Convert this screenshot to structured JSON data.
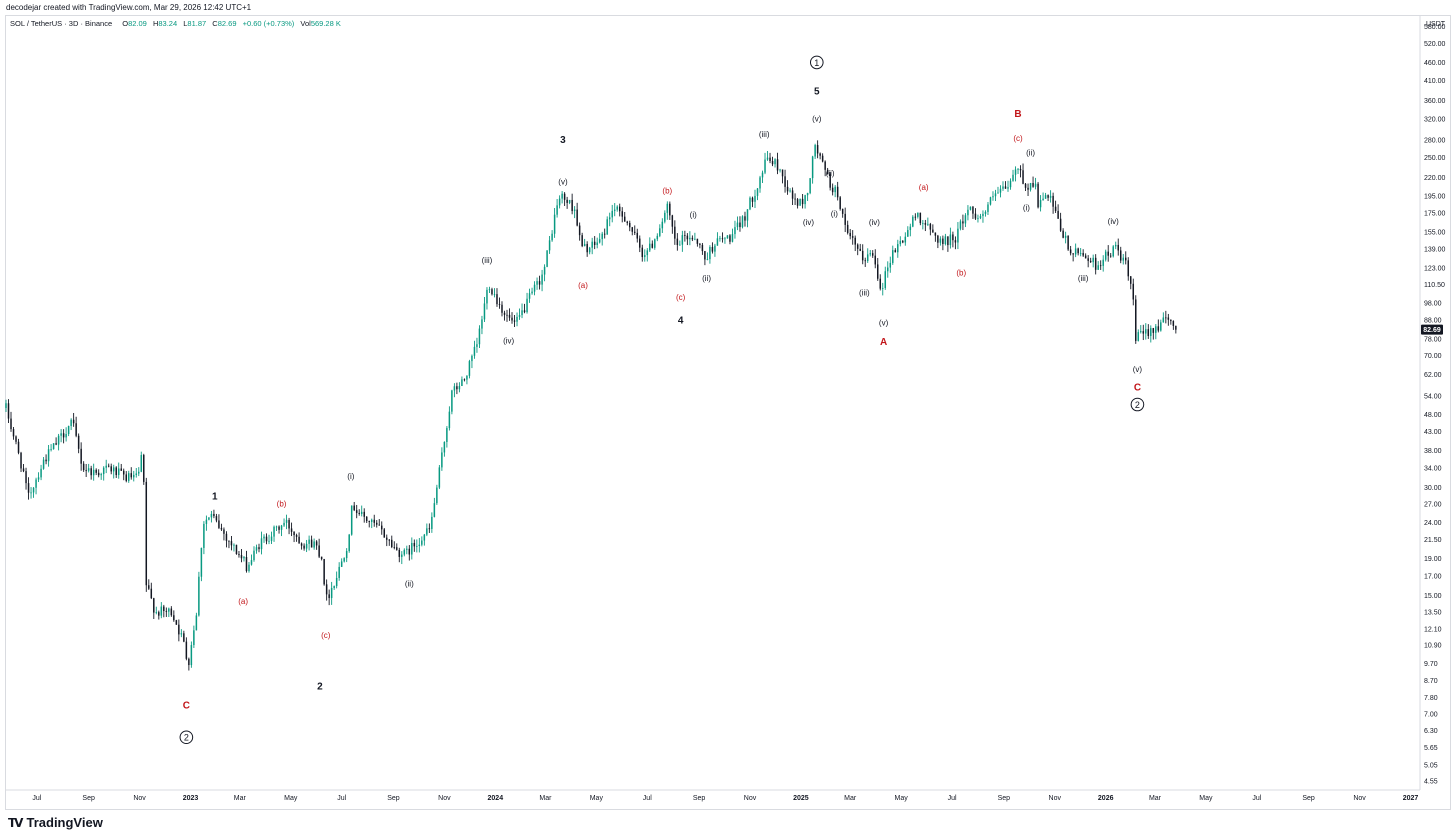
{
  "caption": "decodejar created with TradingView.com, Mar 29, 2026 12:42 UTC+1",
  "header": {
    "symbol": "SOL / TetherUS · 3D · Binance",
    "o_label": "O",
    "o": "82.09",
    "h_label": "H",
    "h": "83.24",
    "l_label": "L",
    "l": "81.87",
    "c_label": "C",
    "c": "82.69",
    "change": "+0.60 (+0.73%)",
    "vol_label": "Vol",
    "vol": "569.28 K"
  },
  "brand": "TradingView",
  "colors": {
    "up": "#089981",
    "down": "#131722",
    "label_red": "#c2161a",
    "last_price_bg": "#131722"
  },
  "chart_data": {
    "type": "candlestick",
    "title": "SOL / TetherUS · 3D · Binance",
    "y_scale": "log",
    "y_unit": "USDT",
    "last_price": "82.69",
    "y_ticks": [
      "580.00",
      "520.00",
      "460.00",
      "410.00",
      "360.00",
      "320.00",
      "280.00",
      "250.00",
      "220.00",
      "195.00",
      "175.00",
      "155.00",
      "139.00",
      "123.00",
      "110.50",
      "98.00",
      "88.00",
      "78.00",
      "70.00",
      "62.00",
      "54.00",
      "48.00",
      "43.00",
      "38.00",
      "34.00",
      "30.00",
      "27.00",
      "24.00",
      "21.50",
      "19.00",
      "17.00",
      "15.00",
      "13.50",
      "12.10",
      "10.90",
      "9.70",
      "8.70",
      "7.80",
      "7.00",
      "6.30",
      "5.65",
      "5.05",
      "4.55"
    ],
    "x_ticks": [
      "Jul",
      "Sep",
      "Nov",
      "2023",
      "Mar",
      "May",
      "Jul",
      "Sep",
      "Nov",
      "2024",
      "Mar",
      "May",
      "Jul",
      "Sep",
      "Nov",
      "2025",
      "Mar",
      "May",
      "Jul",
      "Sep",
      "Nov",
      "2026",
      "Mar",
      "May",
      "Jul",
      "Sep",
      "Nov",
      "2027"
    ],
    "x_range": [
      "2022-05-25",
      "2027-01-10"
    ],
    "ylim": [
      4.3,
      620
    ],
    "anchors": [
      {
        "d": "2022-05-25",
        "p": 50
      },
      {
        "d": "2022-06-15",
        "p": 33
      },
      {
        "d": "2022-06-20",
        "p": 28
      },
      {
        "d": "2022-07-10",
        "p": 36
      },
      {
        "d": "2022-07-25",
        "p": 40
      },
      {
        "d": "2022-08-12",
        "p": 46
      },
      {
        "d": "2022-08-25",
        "p": 34
      },
      {
        "d": "2022-09-10",
        "p": 33
      },
      {
        "d": "2022-09-25",
        "p": 34
      },
      {
        "d": "2022-10-15",
        "p": 32
      },
      {
        "d": "2022-10-30",
        "p": 32
      },
      {
        "d": "2022-11-05",
        "p": 38
      },
      {
        "d": "2022-11-09",
        "p": 16
      },
      {
        "d": "2022-11-20",
        "p": 13.5
      },
      {
        "d": "2022-12-10",
        "p": 13.5
      },
      {
        "d": "2022-12-24",
        "p": 11
      },
      {
        "d": "2022-12-29",
        "p": 9.6
      },
      {
        "d": "2023-01-08",
        "p": 13.5
      },
      {
        "d": "2023-01-16",
        "p": 24
      },
      {
        "d": "2023-01-26",
        "p": 25
      },
      {
        "d": "2023-02-12",
        "p": 22
      },
      {
        "d": "2023-03-10",
        "p": 18
      },
      {
        "d": "2023-03-25",
        "p": 21
      },
      {
        "d": "2023-04-15",
        "p": 23
      },
      {
        "d": "2023-04-25",
        "p": 24
      },
      {
        "d": "2023-05-15",
        "p": 21
      },
      {
        "d": "2023-05-30",
        "p": 21
      },
      {
        "d": "2023-06-08",
        "p": 19
      },
      {
        "d": "2023-06-12",
        "p": 14.5
      },
      {
        "d": "2023-06-25",
        "p": 17
      },
      {
        "d": "2023-07-08",
        "p": 21
      },
      {
        "d": "2023-07-14",
        "p": 27
      },
      {
        "d": "2023-07-25",
        "p": 25
      },
      {
        "d": "2023-08-15",
        "p": 23
      },
      {
        "d": "2023-09-05",
        "p": 20
      },
      {
        "d": "2023-09-15",
        "p": 19.5
      },
      {
        "d": "2023-09-28",
        "p": 21
      },
      {
        "d": "2023-10-15",
        "p": 23
      },
      {
        "d": "2023-10-25",
        "p": 32
      },
      {
        "d": "2023-11-10",
        "p": 55
      },
      {
        "d": "2023-11-25",
        "p": 60
      },
      {
        "d": "2023-12-10",
        "p": 75
      },
      {
        "d": "2023-12-24",
        "p": 112
      },
      {
        "d": "2024-01-05",
        "p": 98
      },
      {
        "d": "2024-01-15",
        "p": 90
      },
      {
        "d": "2024-01-25",
        "p": 85
      },
      {
        "d": "2024-02-10",
        "p": 100
      },
      {
        "d": "2024-02-28",
        "p": 120
      },
      {
        "d": "2024-03-15",
        "p": 185
      },
      {
        "d": "2024-03-20",
        "p": 195
      },
      {
        "d": "2024-04-05",
        "p": 180
      },
      {
        "d": "2024-04-13",
        "p": 140
      },
      {
        "d": "2024-04-25",
        "p": 140
      },
      {
        "d": "2024-05-08",
        "p": 150
      },
      {
        "d": "2024-05-20",
        "p": 180
      },
      {
        "d": "2024-06-05",
        "p": 170
      },
      {
        "d": "2024-06-25",
        "p": 135
      },
      {
        "d": "2024-07-05",
        "p": 140
      },
      {
        "d": "2024-07-25",
        "p": 180
      },
      {
        "d": "2024-08-05",
        "p": 140
      },
      {
        "d": "2024-08-15",
        "p": 150
      },
      {
        "d": "2024-08-28",
        "p": 150
      },
      {
        "d": "2024-09-08",
        "p": 130
      },
      {
        "d": "2024-09-20",
        "p": 145
      },
      {
        "d": "2024-10-10",
        "p": 150
      },
      {
        "d": "2024-10-25",
        "p": 170
      },
      {
        "d": "2024-11-10",
        "p": 210
      },
      {
        "d": "2024-11-22",
        "p": 250
      },
      {
        "d": "2024-12-05",
        "p": 235
      },
      {
        "d": "2024-12-20",
        "p": 195
      },
      {
        "d": "2024-12-30",
        "p": 185
      },
      {
        "d": "2025-01-08",
        "p": 195
      },
      {
        "d": "2025-01-18",
        "p": 270
      },
      {
        "d": "2025-01-25",
        "p": 245
      },
      {
        "d": "2025-02-05",
        "p": 210
      },
      {
        "d": "2025-02-15",
        "p": 195
      },
      {
        "d": "2025-02-25",
        "p": 150
      },
      {
        "d": "2025-03-05",
        "p": 145
      },
      {
        "d": "2025-03-15",
        "p": 130
      },
      {
        "d": "2025-03-28",
        "p": 135
      },
      {
        "d": "2025-04-07",
        "p": 108
      },
      {
        "d": "2025-04-20",
        "p": 135
      },
      {
        "d": "2025-05-05",
        "p": 150
      },
      {
        "d": "2025-05-20",
        "p": 175
      },
      {
        "d": "2025-06-05",
        "p": 155
      },
      {
        "d": "2025-06-20",
        "p": 145
      },
      {
        "d": "2025-07-05",
        "p": 150
      },
      {
        "d": "2025-07-20",
        "p": 180
      },
      {
        "d": "2025-08-05",
        "p": 170
      },
      {
        "d": "2025-08-20",
        "p": 195
      },
      {
        "d": "2025-09-05",
        "p": 205
      },
      {
        "d": "2025-09-18",
        "p": 235
      },
      {
        "d": "2025-09-28",
        "p": 205
      },
      {
        "d": "2025-10-08",
        "p": 215
      },
      {
        "d": "2025-10-12",
        "p": 185
      },
      {
        "d": "2025-10-25",
        "p": 195
      },
      {
        "d": "2025-11-05",
        "p": 165
      },
      {
        "d": "2025-11-20",
        "p": 135
      },
      {
        "d": "2025-12-05",
        "p": 135
      },
      {
        "d": "2025-12-20",
        "p": 125
      },
      {
        "d": "2026-01-05",
        "p": 135
      },
      {
        "d": "2026-01-14",
        "p": 140
      },
      {
        "d": "2026-01-25",
        "p": 125
      },
      {
        "d": "2026-02-03",
        "p": 100
      },
      {
        "d": "2026-02-06",
        "p": 78
      },
      {
        "d": "2026-02-20",
        "p": 82
      },
      {
        "d": "2026-03-05",
        "p": 85
      },
      {
        "d": "2026-03-15",
        "p": 88
      },
      {
        "d": "2026-03-28",
        "p": 82.69
      }
    ],
    "annotations": [
      {
        "text": "2",
        "circled": true,
        "d": "2022-12-27",
        "p": 5.9,
        "color": "#131722"
      },
      {
        "text": "C",
        "d": "2022-12-27",
        "p": 7.25,
        "color": "#c2161a"
      },
      {
        "text": "1",
        "d": "2023-01-30",
        "p": 27.8,
        "color": "#131722"
      },
      {
        "text": "(a)",
        "d": "2023-03-05",
        "p": 14.2,
        "color": "#c2161a"
      },
      {
        "text": "(b)",
        "d": "2023-04-20",
        "p": 26.6,
        "color": "#c2161a"
      },
      {
        "text": "(c)",
        "d": "2023-06-12",
        "p": 11.4,
        "color": "#c2161a"
      },
      {
        "text": "2",
        "d": "2023-06-05",
        "p": 8.2,
        "color": "#131722"
      },
      {
        "text": "(i)",
        "d": "2023-07-12",
        "p": 31.7,
        "color": "#131722"
      },
      {
        "text": "(ii)",
        "d": "2023-09-20",
        "p": 15.9,
        "color": "#131722"
      },
      {
        "text": "(iii)",
        "d": "2023-12-22",
        "p": 127,
        "color": "#131722"
      },
      {
        "text": "(iv)",
        "d": "2024-01-17",
        "p": 75.6,
        "color": "#131722"
      },
      {
        "text": "3",
        "d": "2024-03-22",
        "p": 274,
        "color": "#131722"
      },
      {
        "text": "(v)",
        "d": "2024-03-22",
        "p": 210,
        "color": "#131722"
      },
      {
        "text": "(a)",
        "d": "2024-04-15",
        "p": 108,
        "color": "#c2161a"
      },
      {
        "text": "(b)",
        "d": "2024-07-25",
        "p": 198,
        "color": "#c2161a"
      },
      {
        "text": "(c)",
        "d": "2024-08-10",
        "p": 100,
        "color": "#c2161a"
      },
      {
        "text": "4",
        "d": "2024-08-10",
        "p": 86,
        "color": "#131722"
      },
      {
        "text": "(i)",
        "d": "2024-08-25",
        "p": 170,
        "color": "#131722"
      },
      {
        "text": "(ii)",
        "d": "2024-09-10",
        "p": 113,
        "color": "#131722"
      },
      {
        "text": "(iii)",
        "d": "2024-11-18",
        "p": 285,
        "color": "#131722"
      },
      {
        "text": "1",
        "circled": true,
        "d": "2025-01-20",
        "p": 450,
        "color": "#131722"
      },
      {
        "text": "5",
        "d": "2025-01-20",
        "p": 375,
        "color": "#131722"
      },
      {
        "text": "(v)",
        "d": "2025-01-20",
        "p": 315,
        "color": "#131722"
      },
      {
        "text": "(iv)",
        "d": "2025-01-10",
        "p": 162,
        "color": "#131722"
      },
      {
        "text": "(ii)",
        "d": "2025-02-05",
        "p": 222,
        "color": "#131722"
      },
      {
        "text": "(i)",
        "d": "2025-02-10",
        "p": 171,
        "color": "#131722"
      },
      {
        "text": "(iii)",
        "d": "2025-03-18",
        "p": 103,
        "color": "#131722"
      },
      {
        "text": "(iv)",
        "d": "2025-03-30",
        "p": 162,
        "color": "#131722"
      },
      {
        "text": "(v)",
        "d": "2025-04-10",
        "p": 85,
        "color": "#131722"
      },
      {
        "text": "A",
        "d": "2025-04-10",
        "p": 75,
        "color": "#c2161a"
      },
      {
        "text": "(a)",
        "d": "2025-05-28",
        "p": 203,
        "color": "#c2161a"
      },
      {
        "text": "(b)",
        "d": "2025-07-12",
        "p": 117,
        "color": "#c2161a"
      },
      {
        "text": "B",
        "d": "2025-09-18",
        "p": 324,
        "color": "#c2161a"
      },
      {
        "text": "(c)",
        "d": "2025-09-18",
        "p": 278,
        "color": "#c2161a"
      },
      {
        "text": "(ii)",
        "d": "2025-10-03",
        "p": 253,
        "color": "#131722"
      },
      {
        "text": "(i)",
        "d": "2025-09-28",
        "p": 178,
        "color": "#131722"
      },
      {
        "text": "(iii)",
        "d": "2025-12-05",
        "p": 113,
        "color": "#131722"
      },
      {
        "text": "(iv)",
        "d": "2026-01-10",
        "p": 163,
        "color": "#131722"
      },
      {
        "text": "(v)",
        "d": "2026-02-08",
        "p": 63,
        "color": "#131722"
      },
      {
        "text": "C",
        "d": "2026-02-08",
        "p": 56,
        "color": "#c2161a"
      },
      {
        "text": "2",
        "circled": true,
        "d": "2026-02-08",
        "p": 50,
        "color": "#131722"
      }
    ]
  }
}
